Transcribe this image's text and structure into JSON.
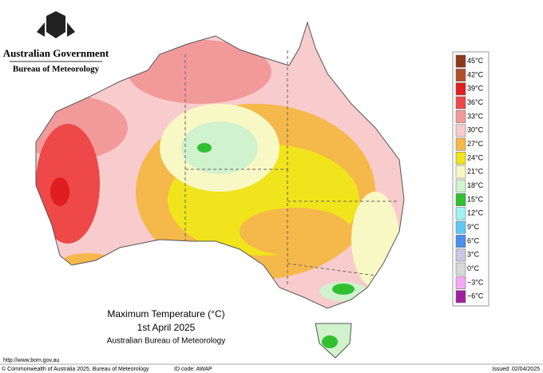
{
  "header": {
    "government": "Australian Government",
    "bureau": "Bureau of Meteorology"
  },
  "map": {
    "title": "Maximum Temperature (°C)",
    "date": "1st April 2025",
    "source": "Australian Bureau of Meteorology"
  },
  "legend": {
    "items": [
      {
        "label": "45°C",
        "color": "#8b3a1e"
      },
      {
        "label": "42°C",
        "color": "#b0502a"
      },
      {
        "label": "39°C",
        "color": "#e01e1e"
      },
      {
        "label": "36°C",
        "color": "#ee4848"
      },
      {
        "label": "33°C",
        "color": "#f29a9a"
      },
      {
        "label": "30°C",
        "color": "#f8cccc"
      },
      {
        "label": "27°C",
        "color": "#f5b84a"
      },
      {
        "label": "24°C",
        "color": "#f0e41c"
      },
      {
        "label": "21°C",
        "color": "#f8f8c4"
      },
      {
        "label": "18°C",
        "color": "#d0f2cc"
      },
      {
        "label": "15°C",
        "color": "#30c030"
      },
      {
        "label": "12°C",
        "color": "#a0f4f4"
      },
      {
        "label": "9°C",
        "color": "#60c8f4"
      },
      {
        "label": "6°C",
        "color": "#4890f0"
      },
      {
        "label": "3°C",
        "color": "#c8c8e4"
      },
      {
        "label": "0°C",
        "color": "#d8d8d8"
      },
      {
        "label": "−3°C",
        "color": "#f4a8f4"
      },
      {
        "label": "−6°C",
        "color": "#a020a0"
      }
    ]
  },
  "footer": {
    "url": "http://www.bom.gov.au",
    "copyright": "© Commonwealth of Australia 2025, Bureau of Meteorology",
    "id": "ID code: AWAP",
    "issued": "Issued: 02/04/2025"
  }
}
